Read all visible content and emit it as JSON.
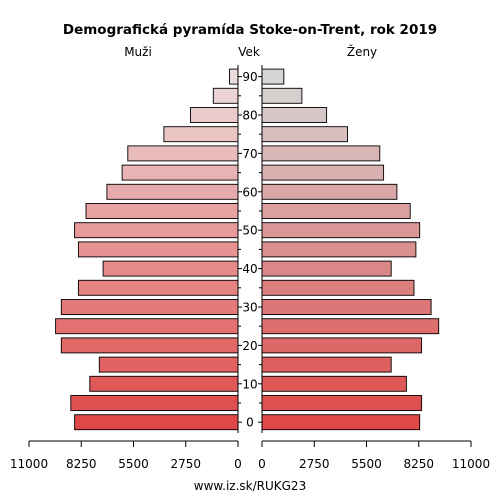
{
  "chart_data": {
    "type": "bar",
    "orientation": "horizontal-population-pyramid",
    "title": "Demografická pyramída Stoke-on-Trent, rok 2019",
    "left_label": "Muži",
    "center_label": "Vek",
    "right_label": "Ženy",
    "source": "www.iz.sk/RUKG23",
    "age_groups": [
      "0",
      "5",
      "10",
      "15",
      "20",
      "25",
      "30",
      "35",
      "40",
      "45",
      "50",
      "55",
      "60",
      "65",
      "70",
      "75",
      "80",
      "85",
      "90"
    ],
    "age_tick_labels": [
      "0",
      "10",
      "20",
      "30",
      "40",
      "50",
      "60",
      "70",
      "80",
      "90"
    ],
    "x_ticks_left": [
      "11000",
      "8250",
      "5500",
      "2750",
      "0"
    ],
    "x_ticks_right": [
      "0",
      "2750",
      "5500",
      "8250",
      "11000"
    ],
    "xlim": [
      0,
      11000
    ],
    "series": [
      {
        "name": "Muži",
        "values": [
          8600,
          8800,
          7800,
          7300,
          9300,
          9600,
          9300,
          8400,
          7100,
          8400,
          8600,
          8000,
          6900,
          6100,
          5800,
          3900,
          2500,
          1300,
          450
        ]
      },
      {
        "name": "Ženy",
        "values": [
          8300,
          8400,
          7600,
          6800,
          8400,
          9300,
          8900,
          8000,
          6800,
          8100,
          8300,
          7800,
          7100,
          6400,
          6200,
          4500,
          3400,
          2100,
          1150
        ]
      }
    ],
    "colors": {
      "male_bottom": "#e04848",
      "male_top": "#ecdcdc",
      "female_bottom": "#e04848",
      "female_top": "#d6d6d6"
    },
    "grid": false
  }
}
